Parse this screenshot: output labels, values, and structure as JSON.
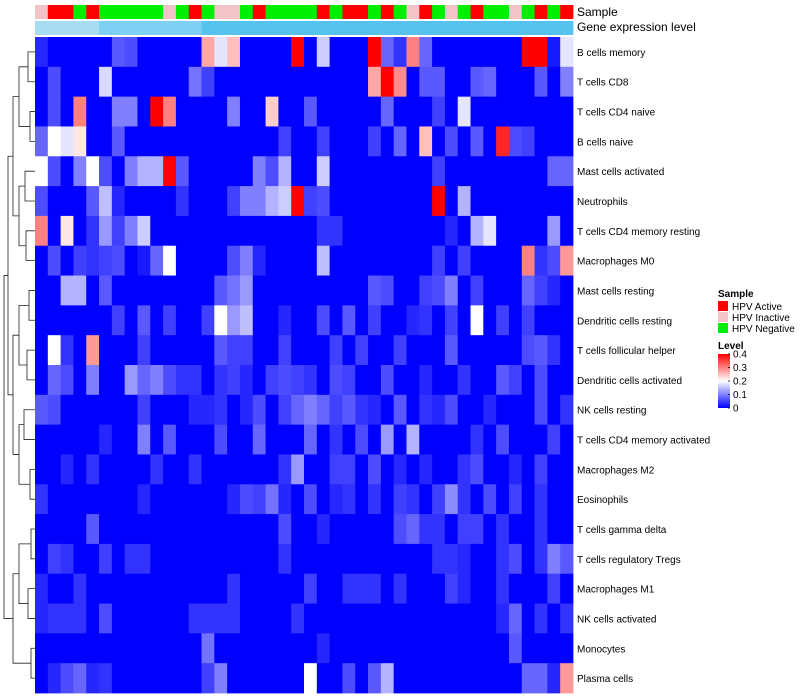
{
  "chart_data": {
    "type": "heatmap",
    "title": "",
    "annotation_tracks": [
      {
        "label": "Sample",
        "kind": "categorical"
      },
      {
        "label": "Gene expression level",
        "kind": "continuous",
        "color": "#56c2ee"
      }
    ],
    "sample_groups": [
      "HPV Inactive",
      "HPV Active",
      "HPV Active",
      "HPV Negative",
      "HPV Active",
      "HPV Negative",
      "HPV Negative",
      "HPV Negative",
      "HPV Negative",
      "HPV Negative",
      "HPV Inactive",
      "HPV Negative",
      "HPV Active",
      "HPV Negative",
      "HPV Inactive",
      "HPV Inactive",
      "HPV Negative",
      "HPV Active",
      "HPV Negative",
      "HPV Negative",
      "HPV Negative",
      "HPV Negative",
      "HPV Active",
      "HPV Negative",
      "HPV Active",
      "HPV Active",
      "HPV Negative",
      "HPV Active",
      "HPV Negative",
      "HPV Inactive",
      "HPV Active",
      "HPV Negative",
      "HPV Inactive",
      "HPV Negative",
      "HPV Active",
      "HPV Negative",
      "HPV Negative",
      "HPV Inactive",
      "HPV Negative",
      "HPV Active",
      "HPV Negative",
      "HPV Active"
    ],
    "rows": [
      "B cells memory",
      "T cells CD8",
      "T cells CD4 naive",
      "B cells naive",
      "Mast cells activated",
      "Neutrophils",
      "T cells CD4 memory resting",
      "Macrophages M0",
      "Mast cells resting",
      "Dendritic cells resting",
      "T cells follicular helper",
      "Dendritic cells activated",
      "NK cells resting",
      "T cells CD4 memory activated",
      "Macrophages M2",
      "Eosinophils",
      "T cells gamma delta",
      "T cells regulatory  Tregs",
      "Macrophages M1",
      "NK cells activated",
      "Monocytes",
      "Plasma cells"
    ],
    "values": [
      [
        0.03,
        0,
        0,
        0,
        0,
        0,
        0.07,
        0.06,
        0,
        0,
        0,
        0,
        0,
        0.27,
        0.18,
        0.25,
        0,
        0,
        0,
        0,
        0.4,
        0,
        0.16,
        0,
        0,
        0,
        0.4,
        0.08,
        0.04,
        0.3,
        0.08,
        0,
        0,
        0,
        0,
        0,
        0,
        0,
        0.4,
        0.4,
        0.02,
        0.18
      ],
      [
        0,
        0.06,
        0,
        0,
        0,
        0.17,
        0,
        0,
        0,
        0,
        0,
        0,
        0.09,
        0.05,
        0,
        0,
        0,
        0,
        0,
        0,
        0,
        0,
        0,
        0,
        0,
        0,
        0.27,
        0.4,
        0.29,
        0,
        0.07,
        0.07,
        0,
        0,
        0.07,
        0.08,
        0,
        0,
        0,
        0.07,
        0,
        0.1
      ],
      [
        0,
        0.06,
        0,
        0.3,
        0,
        0,
        0.1,
        0.1,
        0,
        0.4,
        0.3,
        0,
        0,
        0,
        0,
        0.1,
        0,
        0,
        0.24,
        0,
        0,
        0.07,
        0,
        0,
        0,
        0,
        0,
        0.08,
        0,
        0,
        0,
        0.05,
        0,
        0.18,
        0,
        0,
        0,
        0,
        0,
        0,
        0,
        0
      ],
      [
        0.08,
        0.2,
        0.18,
        0.22,
        0,
        0,
        0.07,
        0,
        0,
        0,
        0,
        0,
        0,
        0,
        0,
        0,
        0,
        0,
        0,
        0.05,
        0,
        0,
        0.05,
        0,
        0,
        0,
        0.05,
        0,
        0.08,
        0,
        0.25,
        0,
        0.06,
        0,
        0.07,
        0,
        0.37,
        0.06,
        0.05,
        0,
        0,
        0
      ],
      [
        0.2,
        0.06,
        0,
        0.1,
        0.2,
        0.06,
        0,
        0.1,
        0.14,
        0.14,
        0.4,
        0.07,
        0,
        0,
        0,
        0,
        0,
        0.1,
        0.06,
        0.14,
        0,
        0,
        0.16,
        0,
        0,
        0,
        0,
        0,
        0,
        0,
        0,
        0.05,
        0,
        0,
        0,
        0,
        0,
        0,
        0,
        0,
        0.08,
        0.08
      ],
      [
        0.06,
        0,
        0,
        0,
        0.07,
        0.15,
        0.03,
        0,
        0,
        0,
        0,
        0.04,
        0,
        0,
        0,
        0.05,
        0.1,
        0.1,
        0.14,
        0.16,
        0.4,
        0.05,
        0.06,
        0,
        0,
        0,
        0,
        0,
        0,
        0,
        0,
        0.4,
        0,
        0.14,
        0,
        0,
        0,
        0,
        0,
        0,
        0,
        0
      ],
      [
        0.3,
        0,
        0.22,
        0,
        0.04,
        0.12,
        0.05,
        0.1,
        0.16,
        0,
        0,
        0,
        0,
        0,
        0,
        0,
        0,
        0,
        0,
        0,
        0,
        0,
        0.04,
        0.04,
        0,
        0,
        0,
        0,
        0,
        0,
        0,
        0,
        0.03,
        0,
        0.14,
        0.18,
        0,
        0,
        0,
        0,
        0.12,
        0
      ],
      [
        0,
        0.06,
        0,
        0.05,
        0.04,
        0.05,
        0.06,
        0,
        0.02,
        0.08,
        0.2,
        0,
        0,
        0,
        0,
        0.06,
        0.1,
        0.03,
        0,
        0,
        0,
        0,
        0.15,
        0,
        0,
        0,
        0,
        0,
        0,
        0,
        0,
        0.05,
        0,
        0.05,
        0,
        0,
        0,
        0,
        0.3,
        0.04,
        0.06,
        0.28
      ],
      [
        0,
        0,
        0.14,
        0.14,
        0,
        0.07,
        0,
        0,
        0,
        0,
        0,
        0,
        0,
        0,
        0.07,
        0.09,
        0.12,
        0,
        0,
        0,
        0,
        0,
        0,
        0,
        0,
        0,
        0.07,
        0.06,
        0,
        0,
        0.05,
        0.06,
        0.1,
        0,
        0.05,
        0,
        0,
        0,
        0.08,
        0.05,
        0.03,
        0
      ],
      [
        0,
        0,
        0,
        0,
        0,
        0,
        0.05,
        0,
        0.07,
        0,
        0.05,
        0,
        0,
        0.05,
        0.2,
        0.12,
        0.15,
        0,
        0,
        0.03,
        0,
        0,
        0.06,
        0,
        0.07,
        0,
        0.05,
        0,
        0,
        0.03,
        0.04,
        0,
        0.05,
        0,
        0.2,
        0,
        0.05,
        0,
        0.05,
        0,
        0,
        0
      ],
      [
        0,
        0.2,
        0.04,
        0,
        0.28,
        0,
        0,
        0,
        0.05,
        0,
        0,
        0,
        0,
        0,
        0.07,
        0.05,
        0.05,
        0,
        0,
        0.05,
        0,
        0,
        0,
        0.05,
        0,
        0.05,
        0,
        0,
        0.05,
        0,
        0,
        0,
        0.07,
        0,
        0,
        0,
        0,
        0,
        0.06,
        0.07,
        0.04,
        0
      ],
      [
        0,
        0.08,
        0.06,
        0,
        0.1,
        0,
        0,
        0.12,
        0.08,
        0.1,
        0.06,
        0.04,
        0.04,
        0,
        0.04,
        0.05,
        0.03,
        0,
        0.05,
        0.06,
        0.05,
        0.04,
        0,
        0.06,
        0.05,
        0,
        0,
        0.06,
        0,
        0,
        0.03,
        0,
        0,
        0.04,
        0,
        0,
        0.07,
        0.05,
        0,
        0.06,
        0,
        0
      ],
      [
        0.07,
        0.06,
        0,
        0,
        0,
        0,
        0,
        0,
        0.05,
        0,
        0,
        0,
        0.03,
        0.03,
        0.04,
        0,
        0.03,
        0.06,
        0,
        0.05,
        0.08,
        0.1,
        0.08,
        0.05,
        0.07,
        0.04,
        0.03,
        0,
        0.07,
        0,
        0.04,
        0.03,
        0.06,
        0,
        0,
        0.03,
        0,
        0,
        0,
        0.06,
        0,
        0.04
      ],
      [
        0,
        0,
        0,
        0,
        0,
        0.03,
        0,
        0,
        0.1,
        0,
        0.07,
        0,
        0,
        0,
        0.06,
        0,
        0,
        0.08,
        0,
        0,
        0,
        0.08,
        0,
        0.04,
        0,
        0.06,
        0,
        0.12,
        0,
        0.14,
        0,
        0,
        0,
        0,
        0.04,
        0,
        0.06,
        0,
        0,
        0,
        0.05,
        0
      ],
      [
        0,
        0,
        0.03,
        0,
        0.04,
        0,
        0,
        0,
        0,
        0.04,
        0,
        0,
        0.04,
        0,
        0,
        0,
        0,
        0,
        0,
        0.04,
        0.12,
        0,
        0,
        0.05,
        0.05,
        0,
        0.06,
        0,
        0.03,
        0,
        0.03,
        0,
        0,
        0.04,
        0.06,
        0,
        0,
        0.03,
        0,
        0.05,
        0,
        0
      ],
      [
        0.04,
        0,
        0,
        0,
        0,
        0,
        0,
        0,
        0.03,
        0,
        0,
        0,
        0,
        0,
        0,
        0.03,
        0.06,
        0.05,
        0.09,
        0.03,
        0,
        0.06,
        0,
        0.03,
        0.04,
        0,
        0.04,
        0,
        0.05,
        0.04,
        0,
        0.05,
        0.11,
        0.04,
        0,
        0.06,
        0,
        0.05,
        0,
        0.04,
        0,
        0
      ],
      [
        0,
        0,
        0,
        0,
        0.07,
        0,
        0,
        0,
        0,
        0,
        0,
        0,
        0,
        0,
        0,
        0,
        0,
        0,
        0,
        0.06,
        0,
        0,
        0.03,
        0,
        0,
        0,
        0,
        0,
        0.06,
        0.08,
        0.04,
        0.04,
        0,
        0.05,
        0.05,
        0,
        0.04,
        0,
        0,
        0.04,
        0,
        0
      ],
      [
        0,
        0.05,
        0.04,
        0,
        0,
        0.05,
        0,
        0.04,
        0.04,
        0,
        0,
        0,
        0,
        0,
        0,
        0,
        0,
        0,
        0,
        0.04,
        0,
        0,
        0,
        0,
        0,
        0,
        0,
        0,
        0,
        0,
        0,
        0.04,
        0.04,
        0.03,
        0,
        0,
        0.04,
        0.06,
        0,
        0.04,
        0.1,
        0.07
      ],
      [
        0.03,
        0,
        0,
        0.04,
        0,
        0,
        0,
        0,
        0,
        0,
        0,
        0,
        0,
        0,
        0,
        0.04,
        0,
        0,
        0,
        0,
        0,
        0.05,
        0,
        0,
        0.04,
        0.04,
        0.04,
        0,
        0.04,
        0,
        0,
        0,
        0.05,
        0.03,
        0,
        0,
        0.04,
        0,
        0,
        0,
        0.05,
        0
      ],
      [
        0.03,
        0.04,
        0.04,
        0.04,
        0,
        0.06,
        0,
        0,
        0,
        0,
        0,
        0,
        0.04,
        0.04,
        0.04,
        0.04,
        0,
        0,
        0,
        0,
        0.04,
        0,
        0,
        0,
        0,
        0,
        0,
        0,
        0,
        0,
        0,
        0,
        0,
        0,
        0,
        0,
        0.03,
        0.08,
        0,
        0.04,
        0,
        0.04
      ],
      [
        0,
        0,
        0,
        0,
        0,
        0,
        0,
        0,
        0,
        0,
        0,
        0,
        0,
        0.09,
        0,
        0,
        0,
        0,
        0,
        0,
        0,
        0,
        0.03,
        0,
        0,
        0,
        0,
        0,
        0,
        0,
        0,
        0,
        0,
        0,
        0,
        0,
        0,
        0.07,
        0,
        0,
        0,
        0
      ],
      [
        0,
        0.03,
        0.06,
        0.08,
        0.03,
        0.04,
        0,
        0,
        0,
        0,
        0,
        0,
        0,
        0.05,
        0.1,
        0,
        0,
        0,
        0,
        0,
        0,
        0.2,
        0,
        0,
        0.06,
        0,
        0.07,
        0.14,
        0,
        0,
        0,
        0,
        0,
        0,
        0,
        0,
        0,
        0,
        0.08,
        0.08,
        0.03,
        0.28
      ]
    ],
    "legend": {
      "sample": {
        "title": "Sample",
        "items": [
          {
            "label": "HPV Active",
            "color": "#ff0000"
          },
          {
            "label": "HPV Inactive",
            "color": "#f2c4c8"
          },
          {
            "label": "HPV Negative",
            "color": "#00ee00"
          }
        ]
      },
      "level": {
        "title": "Level",
        "range": [
          0,
          0.4
        ],
        "ticks": [
          {
            "value": 0.4,
            "label": "0.4"
          },
          {
            "value": 0.3,
            "label": "0.3"
          },
          {
            "value": 0.2,
            "label": "0.2"
          },
          {
            "value": 0.1,
            "label": "0.1"
          },
          {
            "value": 0,
            "label": "0"
          }
        ],
        "colors": [
          "#0000ff",
          "#ffffff",
          "#ff0000"
        ]
      }
    },
    "dendrogram": "rows"
  }
}
